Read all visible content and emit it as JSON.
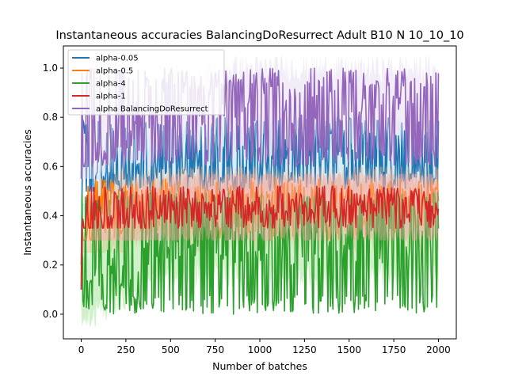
{
  "chart_data": {
    "type": "line",
    "title": "Instantaneous accuracies BalancingDoResurrect Adult B10 N 10_10_10",
    "xlabel": "Number of batches",
    "ylabel": "Instantaneous accuracies",
    "xlim": [
      -100,
      2100
    ],
    "ylim": [
      -0.1,
      1.09
    ],
    "xticks": [
      "0",
      "250",
      "500",
      "750",
      "1000",
      "1250",
      "1500",
      "1750",
      "2000"
    ],
    "yticks": [
      "0.0",
      "0.2",
      "0.4",
      "0.6",
      "0.8",
      "1.0"
    ],
    "legend_position": "upper-left",
    "grid": false,
    "series": [
      {
        "name": "alpha-0.05",
        "color": "#1f77b4",
        "band_color": "#add8e6",
        "start": 0.2,
        "mean": [
          0.2,
          0.45,
          0.52,
          0.56,
          0.56,
          0.57,
          0.58,
          0.59,
          0.6,
          0.6,
          0.61,
          0.61,
          0.62,
          0.62,
          0.62,
          0.62,
          0.62,
          0.62,
          0.62,
          0.62,
          0.62
        ],
        "low": 0.5,
        "high": 0.8
      },
      {
        "name": "alpha-0.5",
        "color": "#ff7f0e",
        "band_color": "#f4b183",
        "start": 0.15,
        "mean": [
          0.15,
          0.3,
          0.4,
          0.42,
          0.43,
          0.43,
          0.43,
          0.43,
          0.43,
          0.43,
          0.43,
          0.43,
          0.43,
          0.43,
          0.43,
          0.43,
          0.43,
          0.43,
          0.43,
          0.43,
          0.43
        ],
        "low": 0.3,
        "high": 0.55
      },
      {
        "name": "alpha-4",
        "color": "#2ca02c",
        "band_color": "#98df8a",
        "start": 0.1,
        "mean": [
          0.1,
          0.15,
          0.2,
          0.22,
          0.28,
          0.3,
          0.3,
          0.3,
          0.3,
          0.3,
          0.3,
          0.3,
          0.3,
          0.3,
          0.3,
          0.3,
          0.3,
          0.3,
          0.3,
          0.3,
          0.3
        ],
        "low": 0.0,
        "high": 0.5
      },
      {
        "name": "alpha-1",
        "color": "#d62728",
        "band_color": "#f4a7a7",
        "start": 0.1,
        "mean": [
          0.1,
          0.3,
          0.36,
          0.38,
          0.4,
          0.42,
          0.43,
          0.44,
          0.44,
          0.44,
          0.44,
          0.44,
          0.44,
          0.44,
          0.44,
          0.44,
          0.44,
          0.44,
          0.44,
          0.44,
          0.43
        ],
        "low": 0.35,
        "high": 0.52
      },
      {
        "name": "alpha BalancingDoResurrect",
        "color": "#9467bd",
        "band_color": "#e3d6ee",
        "start": 0.55,
        "mean": [
          0.55,
          0.7,
          0.75,
          0.78,
          0.8,
          0.82,
          0.84,
          0.85,
          0.86,
          0.86,
          0.86,
          0.86,
          0.86,
          0.86,
          0.86,
          0.86,
          0.86,
          0.86,
          0.86,
          0.86,
          0.85
        ],
        "low": 0.6,
        "high": 1.0
      }
    ],
    "x_max": 2000
  }
}
